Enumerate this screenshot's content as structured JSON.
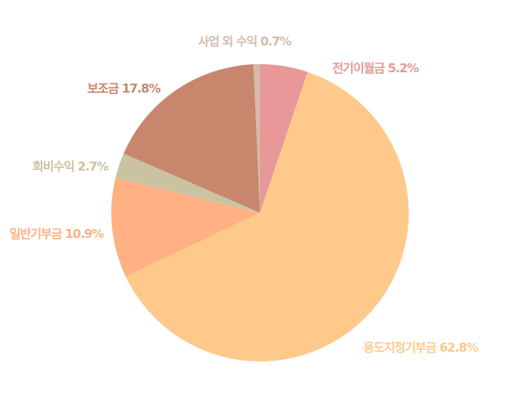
{
  "chart_data": {
    "type": "pie",
    "start": "top",
    "direction": "clockwise",
    "slices": [
      {
        "label": "전기이월금",
        "value": 5.2,
        "text": "전기이월금 5.2%",
        "color": "#e89898"
      },
      {
        "label": "용도지정기부금",
        "value": 62.8,
        "text": "용도지정기부금 62.8%",
        "color": "#ffc98b"
      },
      {
        "label": "일반기부금",
        "value": 10.9,
        "text": "일반기부금 10.9%",
        "color": "#ffb183"
      },
      {
        "label": "회비수익",
        "value": 2.7,
        "text": "회비수익 2.7%",
        "color": "#c9c3a1"
      },
      {
        "label": "보조금",
        "value": 17.8,
        "text": "보조금 17.8%",
        "color": "#c8866d"
      },
      {
        "label": "사업 외 수익",
        "value": 0.7,
        "text": "사업 외 수익 0.7%",
        "color": "#d4bba8"
      }
    ]
  }
}
